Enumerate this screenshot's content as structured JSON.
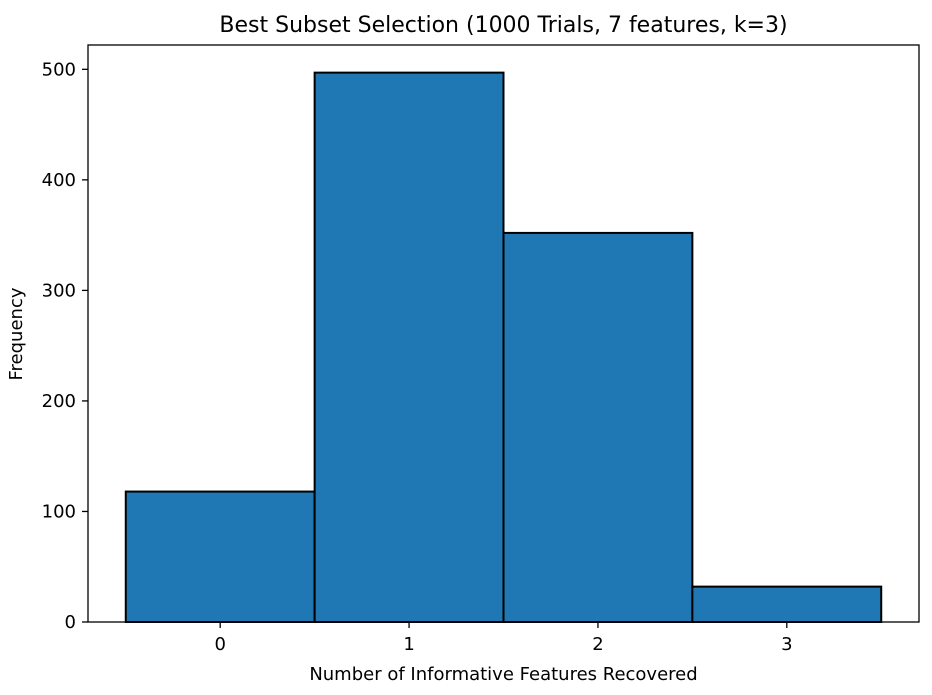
{
  "chart_data": {
    "type": "bar",
    "title": "Best Subset Selection (1000 Trials, 7 features, k=3)",
    "xlabel": "Number of Informative Features Recovered",
    "ylabel": "Frequency",
    "categories": [
      "0",
      "1",
      "2",
      "3"
    ],
    "values": [
      118,
      497,
      352,
      32
    ],
    "ylim": [
      0,
      522
    ],
    "xlim": [
      -0.7,
      3.7
    ],
    "yticks": [
      0,
      100,
      200,
      300,
      400,
      500
    ],
    "grid": false,
    "bar_color": "#1f77b4",
    "edge_color": "#000000"
  }
}
